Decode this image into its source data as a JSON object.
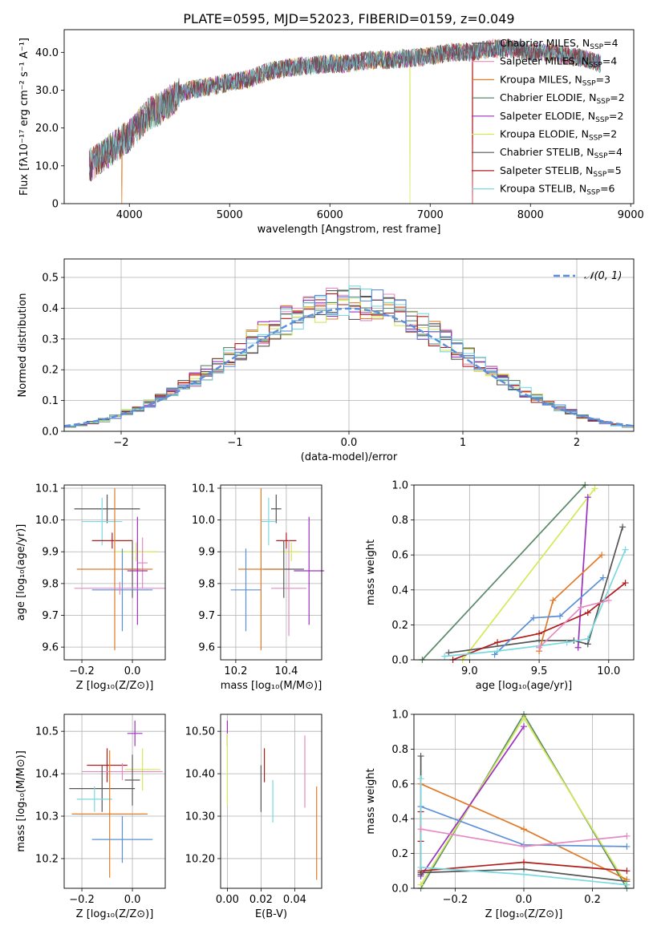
{
  "title": "PLATE=0595, MJD=52023, FIBERID=0159, z=0.049",
  "colors": {
    "chabrier_miles": "#5a5a5a",
    "salpeter_miles": "#e58ac2",
    "kroupa_miles": "#e07b2a",
    "chabrier_elodie": "#5a8a6a",
    "salpeter_elodie": "#9b30c0",
    "kroupa_elodie": "#d4e85a",
    "chabrier_stelib": "#555555",
    "salpeter_stelib": "#b01c1c",
    "kroupa_stelib": "#7ad9e0",
    "normal": "#5b8fd9",
    "blue": "#6a8fdc",
    "grid": "#b0b0b0"
  },
  "legend": {
    "series": [
      {
        "key": "chabrier_miles",
        "name": "Chabrier MILES, N",
        "n": "4"
      },
      {
        "key": "salpeter_miles",
        "name": "Salpeter MILES, N",
        "n": "4"
      },
      {
        "key": "kroupa_miles",
        "name": "Kroupa MILES, N",
        "n": "3"
      },
      {
        "key": "chabrier_elodie",
        "name": "Chabrier ELODIE, N",
        "n": "2"
      },
      {
        "key": "salpeter_elodie",
        "name": "Salpeter ELODIE, N",
        "n": "2"
      },
      {
        "key": "kroupa_elodie",
        "name": "Kroupa ELODIE, N",
        "n": "2"
      },
      {
        "key": "chabrier_stelib",
        "name": "Chabrier STELIB, N",
        "n": "4"
      },
      {
        "key": "salpeter_stelib",
        "name": "Salpeter STELIB, N",
        "n": "5"
      },
      {
        "key": "kroupa_stelib",
        "name": "Kroupa STELIB, N",
        "n": "6"
      }
    ],
    "subscript": "SSP",
    "normal_label": "𝒩(0, 1)"
  },
  "chart_data": [
    {
      "id": "spectrum",
      "type": "line",
      "xlabel": "wavelength [Angstrom, rest frame]",
      "ylabel": "Flux [fλ10⁻¹⁷ erg cm⁻² s⁻¹ A⁻¹]",
      "xlim": [
        3350,
        9030
      ],
      "ylim": [
        0,
        46
      ],
      "xticks": [
        4000,
        5000,
        6000,
        7000,
        8000,
        9000
      ],
      "yticks": [
        0,
        10,
        20,
        30,
        40
      ],
      "continuum": [
        [
          3600,
          10
        ],
        [
          3700,
          12
        ],
        [
          3800,
          14
        ],
        [
          3900,
          16
        ],
        [
          4000,
          18
        ],
        [
          4100,
          21
        ],
        [
          4200,
          24
        ],
        [
          4300,
          25
        ],
        [
          4400,
          27
        ],
        [
          4500,
          29
        ],
        [
          4600,
          30
        ],
        [
          4800,
          31
        ],
        [
          5000,
          32
        ],
        [
          5200,
          33
        ],
        [
          5400,
          35
        ],
        [
          5600,
          36
        ],
        [
          5800,
          36.5
        ],
        [
          6000,
          37
        ],
        [
          6200,
          37
        ],
        [
          6400,
          38
        ],
        [
          6600,
          38
        ],
        [
          6800,
          38.5
        ],
        [
          7000,
          39
        ],
        [
          7200,
          40
        ],
        [
          7400,
          40
        ],
        [
          7600,
          41
        ],
        [
          7800,
          41
        ],
        [
          8000,
          40
        ],
        [
          8200,
          40
        ],
        [
          8400,
          39
        ],
        [
          8600,
          38
        ],
        [
          8700,
          37
        ]
      ],
      "dropouts": [
        {
          "series": "kroupa_elodie",
          "x": 6800
        },
        {
          "series": "kroupa_miles",
          "x": 3925
        },
        {
          "series": "salpeter_stelib",
          "x": 7420
        }
      ]
    },
    {
      "id": "residuals",
      "type": "step",
      "xlabel": "(data-model)/error",
      "ylabel": "Normed distribution",
      "xlim": [
        -2.5,
        2.5
      ],
      "ylim": [
        0,
        0.56
      ],
      "xticks": [
        -2,
        -1,
        0,
        1,
        2
      ],
      "yticks": [
        0.0,
        0.1,
        0.2,
        0.3,
        0.4,
        0.5
      ],
      "bin_width": 0.1
    },
    {
      "id": "age_vs_z",
      "type": "errorbar",
      "xlabel": "Z [log₁₀(Z/Z⊙)]",
      "ylabel": "age  [log₁₀(age/yr)]",
      "xlim": [
        -0.27,
        0.13
      ],
      "ylim": [
        9.56,
        10.11
      ],
      "xticks": [
        -0.2,
        0.0
      ],
      "yticks": [
        9.6,
        9.7,
        9.8,
        9.9,
        10.0,
        10.1
      ],
      "points": [
        {
          "s": "chabrier_stelib",
          "x": -0.1,
          "xerr": 0.13,
          "y": 10.035,
          "yerr": 0.045
        },
        {
          "s": "kroupa_stelib",
          "x": -0.12,
          "xerr": 0.08,
          "y": 9.995,
          "yerr": 0.075
        },
        {
          "s": "salpeter_stelib",
          "x": -0.08,
          "xerr": 0.08,
          "y": 9.935,
          "yerr": 0.025
        },
        {
          "s": "kroupa_elodie",
          "x": 0.015,
          "xerr": 0.085,
          "y": 9.9,
          "yerr": 0.03
        },
        {
          "s": "salpeter_miles",
          "x": 0.04,
          "xerr": 0.02,
          "y": 9.865,
          "yerr": 0.08
        },
        {
          "s": "chabrier_miles",
          "x": 0.0,
          "xerr": 0.03,
          "y": 9.845,
          "yerr": 0.09
        },
        {
          "s": "kroupa_miles",
          "x": -0.07,
          "xerr": 0.15,
          "y": 9.845,
          "yerr": 0.255
        },
        {
          "s": "salpeter_elodie",
          "x": 0.02,
          "xerr": 0.04,
          "y": 9.84,
          "yerr": 0.17
        },
        {
          "s": "normal",
          "x": -0.04,
          "xerr": 0.12,
          "y": 9.78,
          "yerr": 0.13
        },
        {
          "s": "salpeter_miles",
          "x": -0.05,
          "xerr": 0.18,
          "y": 9.785,
          "yerr": 0.02
        }
      ]
    },
    {
      "id": "age_vs_mass",
      "type": "errorbar",
      "xlabel": "mass [log₁₀(M/M⊙)]",
      "ylabel": "",
      "xlim": [
        10.14,
        10.54
      ],
      "ylim": [
        9.56,
        10.11
      ],
      "xticks": [
        10.2,
        10.4
      ],
      "yticks": [
        9.6,
        9.7,
        9.8,
        9.9,
        10.0,
        10.1
      ],
      "points": [
        {
          "s": "chabrier_stelib",
          "x": 10.36,
          "xerr": 0.02,
          "y": 10.035,
          "yerr": 0.045
        },
        {
          "s": "kroupa_stelib",
          "x": 10.33,
          "xerr": 0.03,
          "y": 9.995,
          "yerr": 0.075
        },
        {
          "s": "salpeter_stelib",
          "x": 10.4,
          "xerr": 0.04,
          "y": 9.935,
          "yerr": 0.025
        },
        {
          "s": "kroupa_elodie",
          "x": 10.42,
          "xerr": 0.04,
          "y": 9.9,
          "yerr": 0.03
        },
        {
          "s": "salpeter_miles",
          "x": 10.41,
          "xerr": 0.07,
          "y": 9.785,
          "yerr": 0.15
        },
        {
          "s": "chabrier_miles",
          "x": 10.39,
          "xerr": 0.08,
          "y": 9.845,
          "yerr": 0.09
        },
        {
          "s": "kroupa_miles",
          "x": 10.3,
          "xerr": 0.09,
          "y": 9.845,
          "yerr": 0.255
        },
        {
          "s": "salpeter_elodie",
          "x": 10.49,
          "xerr": 0.06,
          "y": 9.84,
          "yerr": 0.17
        },
        {
          "s": "normal",
          "x": 10.24,
          "xerr": 0.06,
          "y": 9.78,
          "yerr": 0.13
        }
      ]
    },
    {
      "id": "weight_vs_age",
      "type": "line",
      "xlabel": "age  [log₁₀(age/yr)]",
      "ylabel": "mass weight",
      "xlim": [
        8.6,
        10.18
      ],
      "ylim": [
        0,
        1.0
      ],
      "xticks": [
        9.0,
        9.5,
        10.0
      ],
      "yticks": [
        0.0,
        0.2,
        0.4,
        0.6,
        0.8,
        1.0
      ],
      "series": [
        {
          "s": "chabrier_elodie",
          "x": [
            8.66,
            9.83
          ],
          "y": [
            0.0,
            1.0
          ]
        },
        {
          "s": "kroupa_elodie",
          "x": [
            8.95,
            9.9
          ],
          "y": [
            0.0,
            0.98
          ]
        },
        {
          "s": "salpeter_elodie",
          "x": [
            9.78,
            9.85
          ],
          "y": [
            0.07,
            0.93
          ]
        },
        {
          "s": "chabrier_stelib",
          "x": [
            8.85,
            9.5,
            9.75,
            9.85,
            10.1
          ],
          "y": [
            0.04,
            0.11,
            0.11,
            0.09,
            0.76
          ]
        },
        {
          "s": "kroupa_miles",
          "x": [
            9.5,
            9.6,
            9.95
          ],
          "y": [
            0.05,
            0.34,
            0.6
          ]
        },
        {
          "s": "salpeter_stelib",
          "x": [
            8.88,
            9.2,
            9.5,
            9.85,
            10.12
          ],
          "y": [
            0.0,
            0.1,
            0.15,
            0.27,
            0.44
          ]
        },
        {
          "s": "normal",
          "x": [
            9.18,
            9.46,
            9.65,
            9.96
          ],
          "y": [
            0.03,
            0.24,
            0.25,
            0.47
          ]
        },
        {
          "s": "kroupa_stelib",
          "x": [
            8.82,
            9.2,
            9.5,
            9.7,
            9.85,
            10.12
          ],
          "y": [
            0.02,
            0.05,
            0.08,
            0.1,
            0.12,
            0.63
          ]
        },
        {
          "s": "salpeter_miles",
          "x": [
            9.5,
            9.8,
            10.0
          ],
          "y": [
            0.07,
            0.3,
            0.34
          ]
        }
      ]
    },
    {
      "id": "mass_vs_z",
      "type": "errorbar",
      "xlabel": "Z [log₁₀(Z/Z⊙)]",
      "ylabel": "mass [log₁₀(M/M⊙)]",
      "xlim": [
        -0.27,
        0.13
      ],
      "ylim": [
        10.13,
        10.54
      ],
      "xticks": [
        -0.2,
        0.0
      ],
      "yticks": [
        10.2,
        10.3,
        10.4,
        10.5
      ],
      "points": [
        {
          "s": "salpeter_elodie",
          "x": 0.01,
          "xerr": 0.03,
          "y": 10.495,
          "yerr": 0.03
        },
        {
          "s": "salpeter_stelib",
          "x": -0.1,
          "xerr": 0.08,
          "y": 10.42,
          "yerr": 0.04
        },
        {
          "s": "kroupa_elodie",
          "x": 0.04,
          "xerr": 0.07,
          "y": 10.41,
          "yerr": 0.05
        },
        {
          "s": "salpeter_miles",
          "x": -0.04,
          "xerr": 0.16,
          "y": 10.405,
          "yerr": 0.02
        },
        {
          "s": "chabrier_miles",
          "x": 0.0,
          "xerr": 0.03,
          "y": 10.385,
          "yerr": 0.06
        },
        {
          "s": "chabrier_stelib",
          "x": -0.12,
          "xerr": 0.13,
          "y": 10.365,
          "yerr": 0.055
        },
        {
          "s": "kroupa_stelib",
          "x": -0.15,
          "xerr": 0.07,
          "y": 10.34,
          "yerr": 0.03
        },
        {
          "s": "kroupa_miles",
          "x": -0.09,
          "xerr": 0.15,
          "y": 10.305,
          "yerr": 0.15
        },
        {
          "s": "normal",
          "x": -0.04,
          "xerr": 0.12,
          "y": 10.245,
          "yerr": 0.055
        }
      ]
    },
    {
      "id": "mass_vs_ebv",
      "type": "errorbar",
      "xlabel": "E(B-V)",
      "ylabel": "",
      "xlim": [
        -0.004,
        0.056
      ],
      "ylim": [
        10.13,
        10.54
      ],
      "xticks": [
        0.0,
        0.02,
        0.04
      ],
      "yticks": [
        10.2,
        10.3,
        10.4,
        10.5
      ],
      "points": [
        {
          "s": "salpeter_elodie",
          "x": 0.0,
          "xerr": 0,
          "y": 10.495,
          "yerr": 0.03
        },
        {
          "s": "kroupa_elodie",
          "x": 0.0,
          "xerr": 0,
          "y": 10.41,
          "yerr": 0.085
        },
        {
          "s": "chabrier_stelib",
          "x": 0.02,
          "xerr": 0,
          "y": 10.365,
          "yerr": 0.055
        },
        {
          "s": "salpeter_stelib",
          "x": 0.022,
          "xerr": 0,
          "y": 10.42,
          "yerr": 0.04
        },
        {
          "s": "kroupa_stelib",
          "x": 0.027,
          "xerr": 0,
          "y": 10.335,
          "yerr": 0.05
        },
        {
          "s": "salpeter_miles",
          "x": 0.046,
          "xerr": 0,
          "y": 10.405,
          "yerr": 0.085
        },
        {
          "s": "kroupa_miles",
          "x": 0.053,
          "xerr": 0,
          "y": 10.26,
          "yerr": 0.11
        }
      ]
    },
    {
      "id": "weight_vs_z",
      "type": "line",
      "xlabel": "Z [log₁₀(Z/Z⊙)]",
      "ylabel": "mass weight",
      "xlim": [
        -0.32,
        0.32
      ],
      "ylim": [
        0,
        1.0
      ],
      "xticks": [
        -0.2,
        0.0,
        0.2
      ],
      "yticks": [
        0.0,
        0.2,
        0.4,
        0.6,
        0.8,
        1.0
      ],
      "series": [
        {
          "s": "chabrier_elodie",
          "x": [
            -0.3,
            0.0,
            0.3
          ],
          "y": [
            0.0,
            1.0,
            0.0
          ]
        },
        {
          "s": "kroupa_elodie",
          "x": [
            -0.3,
            0.0,
            0.3
          ],
          "y": [
            0.02,
            0.98,
            0.02
          ]
        },
        {
          "s": "salpeter_elodie",
          "x": [
            -0.3,
            0.0
          ],
          "y": [
            0.07,
            0.93
          ]
        },
        {
          "s": "chabrier_stelib",
          "x": [
            -0.3,
            -0.3,
            -0.3,
            0.0,
            0.3
          ],
          "y": [
            0.76,
            0.08,
            0.09,
            0.11,
            0.04
          ]
        },
        {
          "s": "kroupa_miles",
          "x": [
            -0.3,
            0.0,
            0.3
          ],
          "y": [
            0.6,
            0.34,
            0.05
          ]
        },
        {
          "s": "salpeter_stelib",
          "x": [
            -0.3,
            -0.3,
            -0.3,
            0.0,
            0.3
          ],
          "y": [
            0.44,
            0.27,
            0.1,
            0.15,
            0.1
          ]
        },
        {
          "s": "normal",
          "x": [
            -0.3,
            0.0,
            0.3
          ],
          "y": [
            0.47,
            0.25,
            0.24
          ]
        },
        {
          "s": "kroupa_stelib",
          "x": [
            -0.3,
            -0.3,
            0.0,
            0.3
          ],
          "y": [
            0.63,
            0.12,
            0.08,
            0.02
          ]
        },
        {
          "s": "salpeter_miles",
          "x": [
            -0.3,
            0.0,
            0.3
          ],
          "y": [
            0.34,
            0.24,
            0.3
          ]
        }
      ]
    }
  ]
}
